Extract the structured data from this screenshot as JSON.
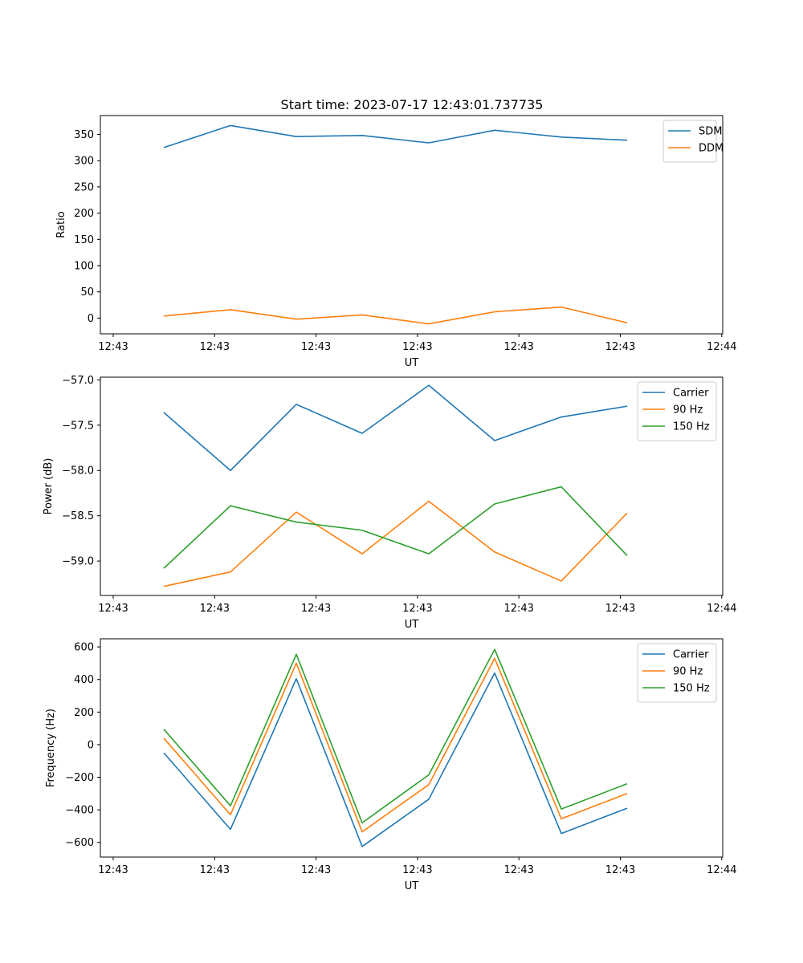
{
  "title": "Start time: 2023-07-17 12:43:01.737735",
  "colors": {
    "blue": "#1f77b4",
    "orange": "#ff7f0e",
    "green": "#2ca02c"
  },
  "chart_data": [
    {
      "type": "line",
      "xlabel": "UT",
      "ylabel": "Ratio",
      "x_tick_labels": [
        "12:43",
        "12:43",
        "12:43",
        "12:43",
        "12:43",
        "12:43",
        "12:44"
      ],
      "y_ticks": [
        0,
        50,
        100,
        150,
        200,
        250,
        300,
        350
      ],
      "y_tick_labels": [
        "0",
        "50",
        "100",
        "150",
        "200",
        "250",
        "300",
        "350"
      ],
      "ylim": [
        -30,
        386
      ],
      "legend_position": "upper-right",
      "series": [
        {
          "name": "SDM",
          "color": "#1f77b4",
          "values": [
            325,
            367,
            346,
            348,
            334,
            358,
            345,
            339
          ]
        },
        {
          "name": "DDM",
          "color": "#ff7f0e",
          "values": [
            4,
            16,
            -2,
            6,
            -11,
            12,
            21,
            -9
          ]
        }
      ]
    },
    {
      "type": "line",
      "xlabel": "UT",
      "ylabel": "Power (dB)",
      "x_tick_labels": [
        "12:43",
        "12:43",
        "12:43",
        "12:43",
        "12:43",
        "12:43",
        "12:44"
      ],
      "y_ticks": [
        -59.0,
        -58.5,
        -58.0,
        -57.5,
        -57.0
      ],
      "y_tick_labels": [
        "−59.0",
        "−58.5",
        "−58.0",
        "−57.5",
        "−57.0"
      ],
      "ylim": [
        -59.38,
        -56.97
      ],
      "legend_position": "upper-right",
      "series": [
        {
          "name": "Carrier",
          "color": "#1f77b4",
          "values": [
            -57.36,
            -58.0,
            -57.27,
            -57.59,
            -57.06,
            -57.67,
            -57.41,
            -57.29
          ]
        },
        {
          "name": "90 Hz",
          "color": "#ff7f0e",
          "values": [
            -59.28,
            -59.12,
            -58.46,
            -58.92,
            -58.34,
            -58.9,
            -59.22,
            -58.47
          ]
        },
        {
          "name": "150 Hz",
          "color": "#2ca02c",
          "values": [
            -59.08,
            -58.39,
            -58.57,
            -58.66,
            -58.92,
            -58.37,
            -58.18,
            -58.94
          ]
        }
      ]
    },
    {
      "type": "line",
      "xlabel": "UT",
      "ylabel": "Frequency (Hz)",
      "x_tick_labels": [
        "12:43",
        "12:43",
        "12:43",
        "12:43",
        "12:43",
        "12:43",
        "12:44"
      ],
      "y_ticks": [
        -600,
        -400,
        -200,
        0,
        200,
        400,
        600
      ],
      "y_tick_labels": [
        "−600",
        "−400",
        "−200",
        "0",
        "200",
        "400",
        "600"
      ],
      "ylim": [
        -690,
        650
      ],
      "legend_position": "upper-right",
      "series": [
        {
          "name": "Carrier",
          "color": "#1f77b4",
          "values": [
            -50,
            -520,
            405,
            -625,
            -335,
            440,
            -545,
            -390
          ]
        },
        {
          "name": "90 Hz",
          "color": "#ff7f0e",
          "values": [
            40,
            -430,
            500,
            -535,
            -245,
            530,
            -455,
            -300
          ]
        },
        {
          "name": "150 Hz",
          "color": "#2ca02c",
          "values": [
            95,
            -375,
            555,
            -480,
            -185,
            585,
            -395,
            -240
          ]
        }
      ]
    }
  ]
}
